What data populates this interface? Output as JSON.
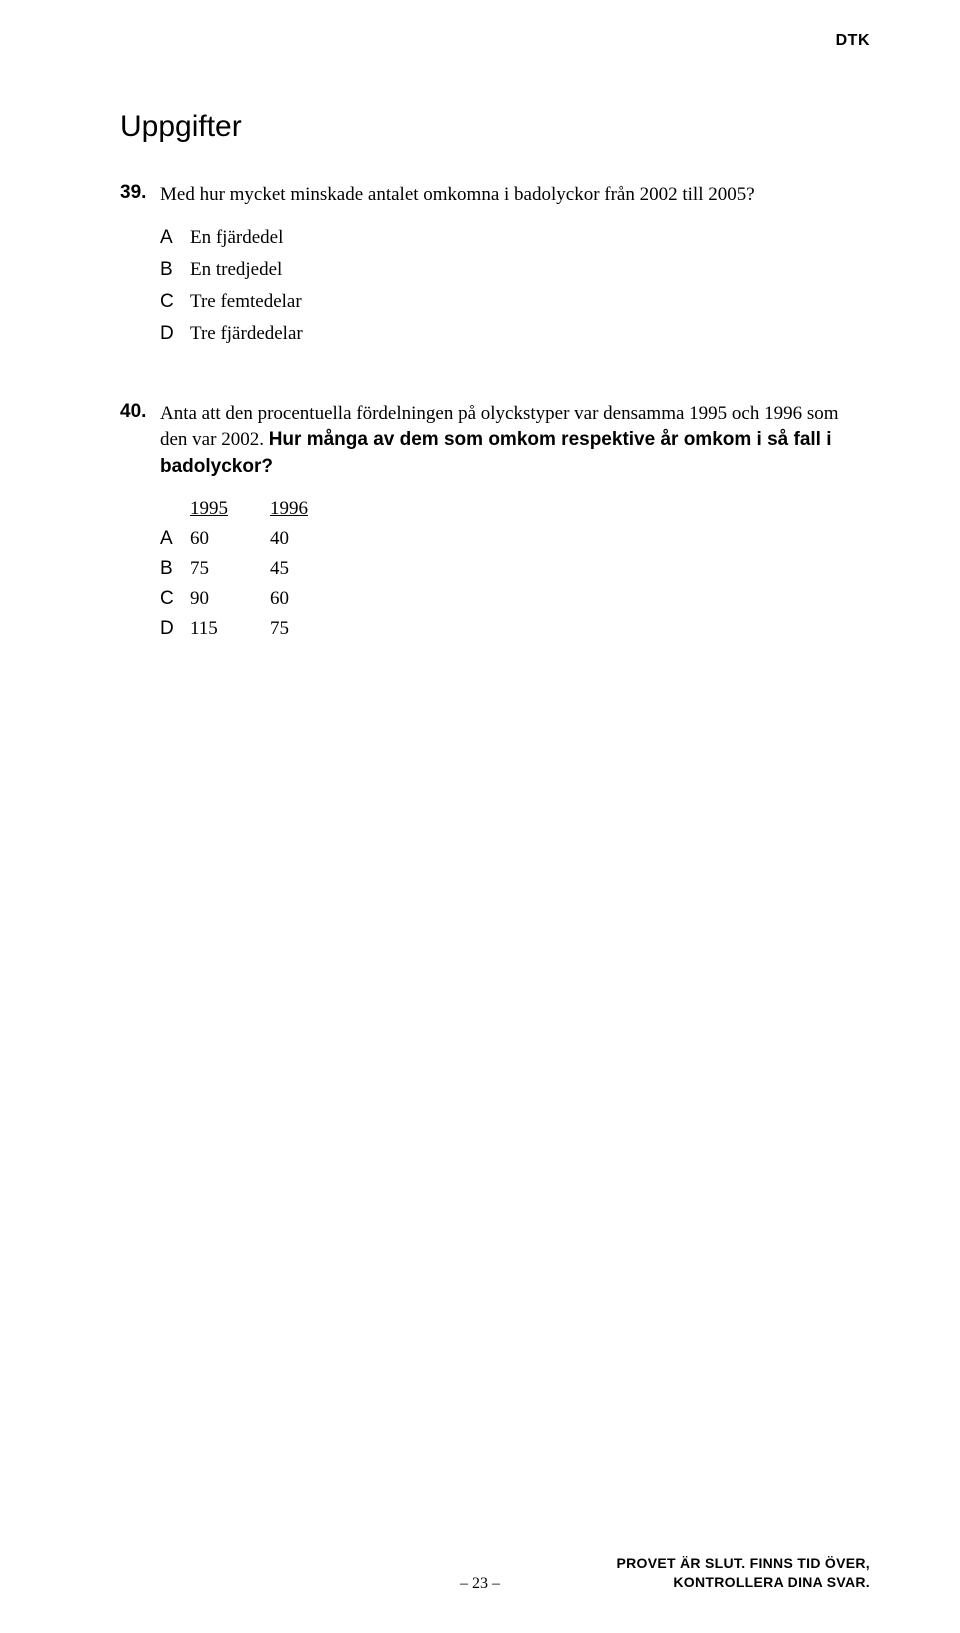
{
  "header": {
    "tag": "DTK"
  },
  "section_heading": "Uppgifter",
  "questions": [
    {
      "number": "39.",
      "text_plain": "Med hur mycket minskade antalet omkomna i badolyckor från 2002 till 2005?",
      "options": [
        {
          "letter": "A",
          "text": "En fjärdedel"
        },
        {
          "letter": "B",
          "text": "En tredjedel"
        },
        {
          "letter": "C",
          "text": "Tre femtedelar"
        },
        {
          "letter": "D",
          "text": "Tre fjärdedelar"
        }
      ]
    },
    {
      "number": "40.",
      "text_plain_prefix": "Anta att den procentuella fördelningen på olyckstyper var densamma 1995 och 1996 som den var 2002. ",
      "text_bold": "Hur många av dem som omkom respektive år omkom i så fall i badolyckor?",
      "table": {
        "headers": [
          "1995",
          "1996"
        ],
        "rows": [
          {
            "letter": "A",
            "values": [
              "60",
              "40"
            ]
          },
          {
            "letter": "B",
            "values": [
              "75",
              "45"
            ]
          },
          {
            "letter": "C",
            "values": [
              "90",
              "60"
            ]
          },
          {
            "letter": "D",
            "values": [
              "115",
              "75"
            ]
          }
        ]
      }
    }
  ],
  "footer": {
    "page_number": "– 23 –",
    "note_line1": "PROVET ÄR SLUT. FINNS TID ÖVER,",
    "note_line2": "KONTROLLERA DINA SVAR."
  }
}
